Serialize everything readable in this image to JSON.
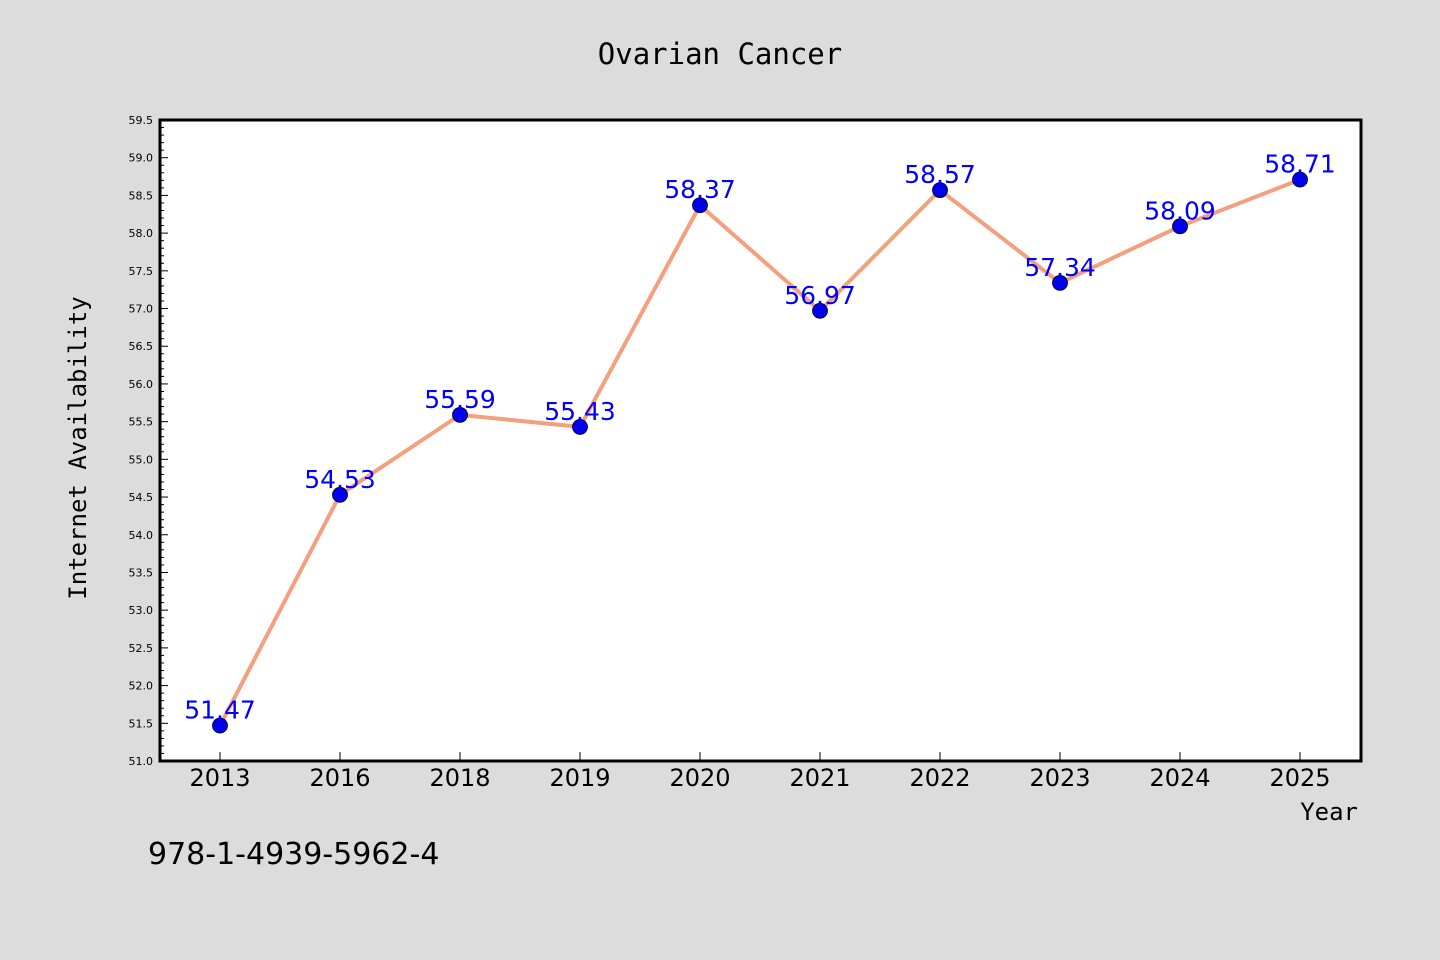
{
  "chart_data": {
    "type": "line",
    "title": "Ovarian Cancer",
    "xlabel": "Year",
    "ylabel": "Internet Availability",
    "categories": [
      "2013",
      "2016",
      "2018",
      "2019",
      "2020",
      "2021",
      "2022",
      "2023",
      "2024",
      "2025"
    ],
    "values": [
      51.47,
      54.53,
      55.59,
      55.43,
      58.37,
      56.97,
      58.57,
      57.34,
      58.09,
      58.71
    ],
    "value_labels": [
      "51.47",
      "54.53",
      "55.59",
      "55.43",
      "58.37",
      "56.97",
      "58.57",
      "57.34",
      "58.09",
      "58.71"
    ],
    "ylim": [
      51.0,
      59.5
    ],
    "yticks": [
      "51.0",
      "51.5",
      "52.0",
      "52.5",
      "53.0",
      "53.5",
      "54.0",
      "54.5",
      "55.0",
      "55.5",
      "56.0",
      "56.5",
      "57.0",
      "57.5",
      "58.0",
      "58.5",
      "59.0",
      "59.5"
    ],
    "grid": false,
    "legend": "none",
    "colors": {
      "line": "#f4a07e",
      "marker": "#0000ee",
      "label": "#0000ff",
      "background": "#dcdcdc",
      "plot_background": "#ffffff"
    }
  },
  "footer": {
    "text": "978-1-4939-5962-4"
  }
}
